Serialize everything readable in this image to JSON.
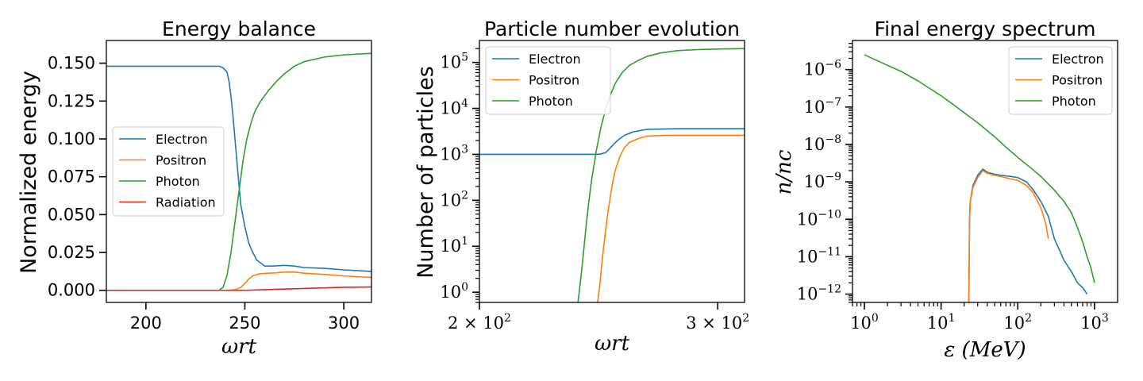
{
  "colors": {
    "Electron": "#1f77b4",
    "Positron": "#ff7f0e",
    "Photon": "#2ca02c",
    "Radiation": "#d62728"
  },
  "chart_data": [
    {
      "type": "line",
      "title": "Energy balance",
      "xlabel": "ωrt",
      "ylabel": "Normalized energy",
      "xlim": [
        180,
        314
      ],
      "ylim": [
        -0.008,
        0.165
      ],
      "x_ticks": [
        200,
        250,
        300
      ],
      "x_tick_labels": [
        "200",
        "250",
        "300"
      ],
      "y_ticks": [
        0.0,
        0.025,
        0.05,
        0.075,
        0.1,
        0.125,
        0.15
      ],
      "y_tick_labels": [
        "0.000",
        "0.025",
        "0.050",
        "0.075",
        "0.100",
        "0.125",
        "0.150"
      ],
      "legend": "center-left",
      "series": [
        {
          "name": "Electron",
          "x": [
            180,
            230,
            237,
            239,
            241,
            242,
            243,
            244,
            245,
            246,
            247,
            248,
            250,
            252,
            254,
            256,
            258,
            260,
            264,
            270,
            275,
            280,
            290,
            300,
            314
          ],
          "y": [
            0.148,
            0.148,
            0.148,
            0.147,
            0.144,
            0.138,
            0.128,
            0.115,
            0.1,
            0.085,
            0.07,
            0.056,
            0.042,
            0.031,
            0.025,
            0.02,
            0.018,
            0.016,
            0.016,
            0.0165,
            0.016,
            0.015,
            0.0145,
            0.0135,
            0.0125
          ]
        },
        {
          "name": "Positron",
          "x": [
            180,
            240,
            244,
            246,
            248,
            250,
            252,
            254,
            256,
            258,
            260,
            265,
            270,
            275,
            280,
            290,
            300,
            314
          ],
          "y": [
            0.0,
            0.0,
            0.0002,
            0.0008,
            0.002,
            0.0045,
            0.0075,
            0.0095,
            0.0105,
            0.011,
            0.0112,
            0.0115,
            0.012,
            0.012,
            0.0113,
            0.0105,
            0.0095,
            0.0085
          ]
        },
        {
          "name": "Photon",
          "x": [
            180,
            237,
            239,
            241,
            243,
            245,
            247,
            249,
            251,
            253,
            255,
            258,
            262,
            266,
            270,
            275,
            280,
            290,
            300,
            314
          ],
          "y": [
            0.0,
            0.0,
            0.002,
            0.01,
            0.025,
            0.045,
            0.065,
            0.085,
            0.1,
            0.11,
            0.118,
            0.125,
            0.132,
            0.138,
            0.143,
            0.148,
            0.151,
            0.154,
            0.1555,
            0.1565
          ]
        },
        {
          "name": "Radiation",
          "x": [
            180,
            250,
            260,
            270,
            280,
            290,
            300,
            314
          ],
          "y": [
            0.0,
            0.0,
            0.0004,
            0.0008,
            0.0012,
            0.0016,
            0.002,
            0.0022
          ]
        }
      ]
    },
    {
      "type": "line",
      "title": "Particle number evolution",
      "xlabel": "ωrt",
      "ylabel": "Number of particles",
      "xscale": "log",
      "yscale": "log",
      "xlim": [
        200,
        314
      ],
      "ylim": [
        0.6,
        300000
      ],
      "x_ticks": [
        200,
        300
      ],
      "x_tick_labels": [
        "2 × 10",
        "3 × 10"
      ],
      "x_tick_exponents": [
        "2",
        "2"
      ],
      "y_ticks": [
        1,
        10,
        100,
        1000,
        10000,
        100000
      ],
      "y_tick_bases": [
        "10",
        "10",
        "10",
        "10",
        "10",
        "10"
      ],
      "y_tick_exponents": [
        "0",
        "1",
        "2",
        "3",
        "4",
        "5"
      ],
      "legend": "top-left",
      "series": [
        {
          "name": "Electron",
          "x": [
            200,
            240,
            244,
            246,
            248,
            250,
            252,
            254,
            256,
            260,
            266,
            280,
            300,
            314
          ],
          "y": [
            1000,
            1000,
            1000,
            1020,
            1100,
            1400,
            1800,
            2200,
            2600,
            3100,
            3500,
            3600,
            3600,
            3600
          ]
        },
        {
          "name": "Positron",
          "x": [
            244.5,
            245,
            245.5,
            246,
            247,
            248,
            249,
            250,
            251,
            252,
            254,
            256,
            258,
            262,
            266,
            275,
            290,
            314
          ],
          "y": [
            0.6,
            0.9,
            1.5,
            3,
            9,
            25,
            60,
            130,
            260,
            450,
            900,
            1400,
            1800,
            2200,
            2500,
            2600,
            2600,
            2600
          ]
        },
        {
          "name": "Photon",
          "x": [
            236.5,
            237,
            238,
            239,
            240,
            241,
            242,
            244,
            246,
            248,
            250,
            252,
            255,
            258,
            262,
            266,
            272,
            280,
            290,
            300,
            314
          ],
          "y": [
            0.6,
            1,
            3,
            10,
            35,
            100,
            260,
            1200,
            4000,
            10000,
            20000,
            35000,
            60000,
            85000,
            110000,
            135000,
            160000,
            180000,
            190000,
            195000,
            200000
          ]
        }
      ]
    },
    {
      "type": "line",
      "title": "Final energy spectrum",
      "xlabel": "ε (MeV)",
      "ylabel": "n/nc",
      "xscale": "log",
      "yscale": "log",
      "xlim": [
        0.7,
        2000
      ],
      "ylim": [
        6e-13,
        6e-06
      ],
      "x_ticks": [
        1,
        10,
        100,
        1000
      ],
      "x_tick_bases": [
        "10",
        "10",
        "10",
        "10"
      ],
      "x_tick_exponents": [
        "0",
        "1",
        "2",
        "3"
      ],
      "y_ticks": [
        1e-12,
        1e-11,
        1e-10,
        1e-09,
        1e-08,
        1e-07,
        1e-06
      ],
      "y_tick_bases": [
        "10",
        "10",
        "10",
        "10",
        "10",
        "10",
        "10"
      ],
      "y_tick_exponents": [
        "−12",
        "−11",
        "−10",
        "−9",
        "−8",
        "−7",
        "−6"
      ],
      "legend": "top-right",
      "series": [
        {
          "name": "Electron",
          "x": [
            23,
            23.5,
            24,
            26,
            30,
            35,
            40,
            50,
            60,
            80,
            100,
            130,
            160,
            200,
            250,
            300,
            350,
            400,
            500,
            600,
            700,
            800
          ],
          "y": [
            6e-13,
            1e-10,
            3e-10,
            8e-10,
            1.5e-09,
            2.2e-09,
            1.8e-09,
            1.6e-09,
            1.5e-09,
            1.4e-09,
            1.3e-09,
            1e-09,
            6e-10,
            3e-10,
            1.2e-10,
            3e-11,
            1.5e-11,
            8e-12,
            4e-12,
            2e-12,
            1.5e-12,
            1e-12
          ]
        },
        {
          "name": "Positron",
          "x": [
            23,
            23.5,
            24,
            26,
            30,
            35,
            40,
            50,
            60,
            80,
            100,
            130,
            160,
            200,
            230,
            250
          ],
          "y": [
            6e-13,
            1e-10,
            3e-10,
            7e-10,
            1.3e-09,
            2e-09,
            1.7e-09,
            1.5e-09,
            1.4e-09,
            1.2e-09,
            1.1e-09,
            8e-10,
            5e-10,
            2e-10,
            8e-11,
            3e-11
          ]
        },
        {
          "name": "Photon",
          "x": [
            1,
            1.5,
            2,
            3,
            5,
            7,
            10,
            15,
            20,
            30,
            50,
            70,
            100,
            150,
            200,
            300,
            400,
            500,
            600,
            700,
            800,
            900,
            1000
          ],
          "y": [
            2.5e-06,
            1.7e-06,
            1.3e-06,
            9e-07,
            5e-07,
            3.2e-07,
            2e-07,
            1.1e-07,
            7e-08,
            3.8e-08,
            1.6e-08,
            8.5e-09,
            4.5e-09,
            2.3e-09,
            1.4e-09,
            6e-10,
            3e-10,
            1.5e-10,
            6e-11,
            2.5e-11,
            1e-11,
            5e-12,
            2e-12
          ]
        }
      ]
    }
  ]
}
